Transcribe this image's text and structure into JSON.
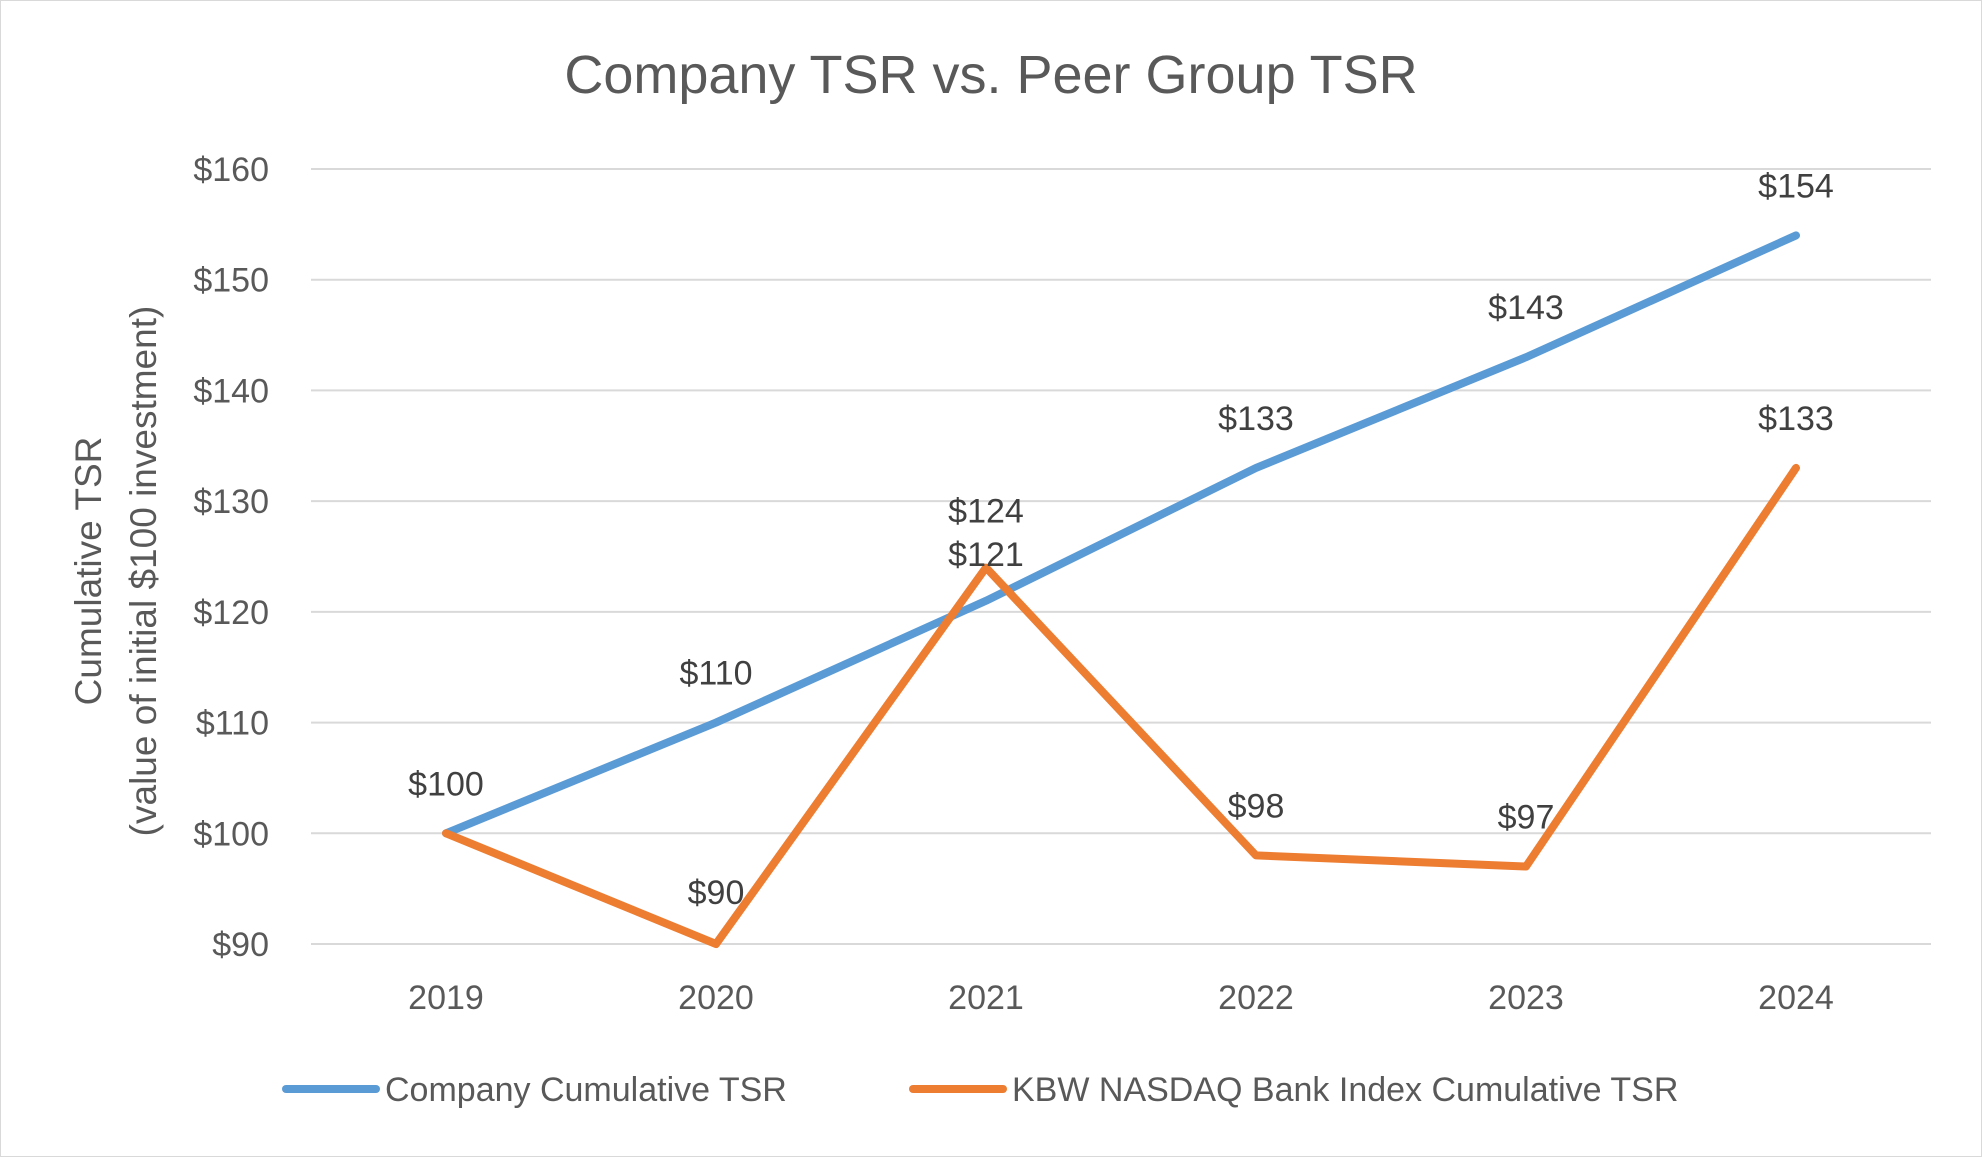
{
  "chart_data": {
    "type": "line",
    "title": "Company TSR vs. Peer Group TSR",
    "ylabel_line1": "Cumulative TSR",
    "ylabel_line2": "(value of initial $100 investment)",
    "xlabel": "",
    "categories": [
      "2019",
      "2020",
      "2021",
      "2022",
      "2023",
      "2024"
    ],
    "ylim": [
      90,
      160
    ],
    "ytick_values": [
      90,
      100,
      110,
      120,
      130,
      140,
      150,
      160
    ],
    "ytick_labels": [
      "$90",
      "$100",
      "$110",
      "$120",
      "$130",
      "$140",
      "$150",
      "$160"
    ],
    "grid": true,
    "legend_position": "bottom",
    "series": [
      {
        "name": "Company Cumulative TSR",
        "color": "#5b9bd5",
        "values": [
          100,
          110,
          121,
          133,
          143,
          154
        ],
        "labels": [
          "$100",
          "$110",
          "$121",
          "$133",
          "$143",
          "$154"
        ]
      },
      {
        "name": "KBW NASDAQ Bank Index Cumulative TSR",
        "color": "#ed7d31",
        "values": [
          100,
          90,
          124,
          98,
          97,
          133
        ],
        "labels": [
          "",
          "$90",
          "$124",
          "$98",
          "$97",
          "$133"
        ]
      }
    ]
  }
}
